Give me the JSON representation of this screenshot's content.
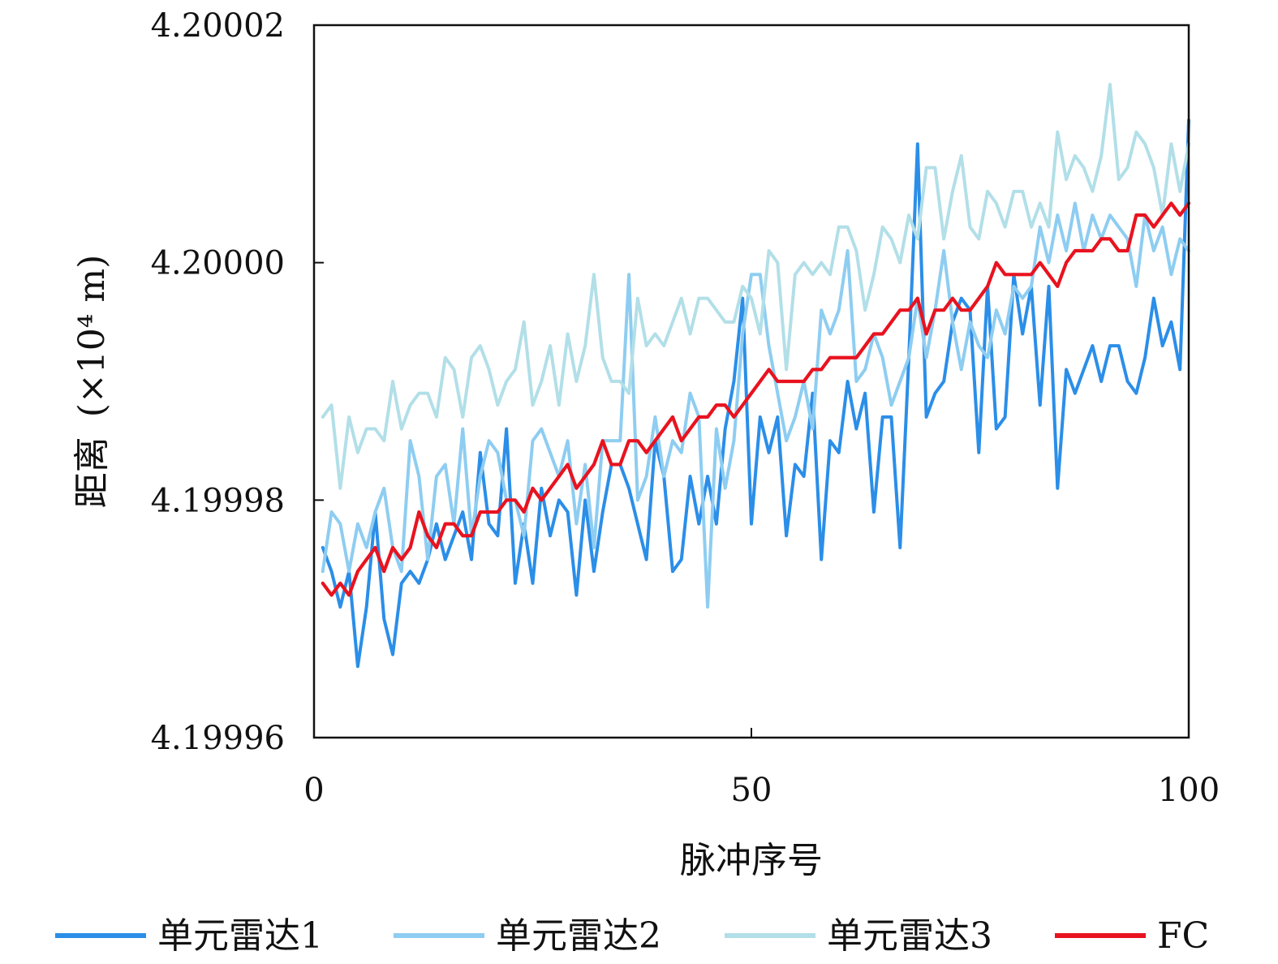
{
  "chart_data": {
    "type": "line",
    "title": "",
    "xlabel": "脉冲序号",
    "ylabel": "距离",
    "ylabel_unit": "(×10⁴ m)",
    "xlim": [
      0,
      100
    ],
    "ylim": [
      4.19996,
      4.20002
    ],
    "x_ticks": [
      0,
      50,
      100
    ],
    "x_tick_labels": [
      "0",
      "50",
      "100"
    ],
    "y_ticks": [
      4.19996,
      4.19998,
      4.2,
      4.20002
    ],
    "y_tick_labels": [
      "4.19996",
      "4.19998",
      "4.20000",
      "4.20002"
    ],
    "grid": false,
    "legend_position": "bottom",
    "series": [
      {
        "name": "单元雷达1",
        "color": "#2b8ee8",
        "values": [
          4.199976,
          4.199974,
          4.199971,
          4.199974,
          4.199966,
          4.199971,
          4.199979,
          4.19997,
          4.199967,
          4.199973,
          4.199974,
          4.199973,
          4.199975,
          4.199978,
          4.199975,
          4.199977,
          4.199979,
          4.199975,
          4.199984,
          4.199978,
          4.199977,
          4.199986,
          4.199973,
          4.199978,
          4.199973,
          4.199981,
          4.199977,
          4.19998,
          4.199979,
          4.199972,
          4.19998,
          4.199974,
          4.199979,
          4.199983,
          4.199983,
          4.199981,
          4.199978,
          4.199975,
          4.199985,
          4.199982,
          4.199974,
          4.199975,
          4.199982,
          4.199978,
          4.199982,
          4.199978,
          4.199986,
          4.19999,
          4.199997,
          4.199978,
          4.199987,
          4.199984,
          4.199987,
          4.199977,
          4.199983,
          4.199982,
          4.199989,
          4.199975,
          4.199985,
          4.199984,
          4.19999,
          4.199986,
          4.199989,
          4.199979,
          4.199987,
          4.199987,
          4.199976,
          4.199992,
          4.20001,
          4.199987,
          4.199989,
          4.19999,
          4.199995,
          4.199997,
          4.199996,
          4.199984,
          4.199998,
          4.199986,
          4.199987,
          4.199999,
          4.199994,
          4.199998,
          4.199988,
          4.199998,
          4.199981,
          4.199991,
          4.199989,
          4.199991,
          4.199993,
          4.19999,
          4.199993,
          4.199993,
          4.19999,
          4.199989,
          4.199992,
          4.199997,
          4.199993,
          4.199995,
          4.199991,
          4.200012
        ]
      },
      {
        "name": "单元雷达2",
        "color": "#8ecdf1",
        "values": [
          4.199974,
          4.199979,
          4.199978,
          4.199974,
          4.199978,
          4.199976,
          4.199979,
          4.199981,
          4.199976,
          4.199974,
          4.199985,
          4.199982,
          4.199975,
          4.199982,
          4.199983,
          4.199978,
          4.199986,
          4.199977,
          4.199982,
          4.199985,
          4.199984,
          4.19998,
          4.19998,
          4.199977,
          4.199985,
          4.199986,
          4.199984,
          4.199982,
          4.199985,
          4.199978,
          4.199983,
          4.199976,
          4.199985,
          4.199985,
          4.199985,
          4.199999,
          4.19998,
          4.199982,
          4.199987,
          4.199982,
          4.199985,
          4.199984,
          4.199989,
          4.199987,
          4.199971,
          4.199986,
          4.199981,
          4.199985,
          4.199994,
          4.199999,
          4.199999,
          4.199993,
          4.199989,
          4.199985,
          4.199987,
          4.19999,
          4.199986,
          4.199996,
          4.199994,
          4.199996,
          4.200001,
          4.19999,
          4.199991,
          4.199994,
          4.199992,
          4.199988,
          4.19999,
          4.199992,
          4.199997,
          4.199992,
          4.199996,
          4.200001,
          4.199995,
          4.199991,
          4.199995,
          4.199993,
          4.199992,
          4.199996,
          4.199994,
          4.199998,
          4.199997,
          4.199998,
          4.200003,
          4.2,
          4.200004,
          4.200001,
          4.200005,
          4.200001,
          4.200004,
          4.200002,
          4.200004,
          4.200003,
          4.200002,
          4.199998,
          4.200004,
          4.200001,
          4.200003,
          4.199999,
          4.200002,
          4.200001
        ]
      },
      {
        "name": "单元雷达3",
        "color": "#b2dfe8",
        "values": [
          4.199987,
          4.199988,
          4.199981,
          4.199987,
          4.199984,
          4.199986,
          4.199986,
          4.199985,
          4.19999,
          4.199986,
          4.199988,
          4.199989,
          4.199989,
          4.199987,
          4.199992,
          4.199991,
          4.199987,
          4.199992,
          4.199993,
          4.199991,
          4.199988,
          4.19999,
          4.199991,
          4.199995,
          4.199988,
          4.19999,
          4.199993,
          4.199988,
          4.199994,
          4.19999,
          4.199993,
          4.199999,
          4.199992,
          4.19999,
          4.19999,
          4.199989,
          4.199997,
          4.199993,
          4.199994,
          4.199993,
          4.199995,
          4.199997,
          4.199994,
          4.199997,
          4.199997,
          4.199996,
          4.199995,
          4.199995,
          4.199998,
          4.199997,
          4.199994,
          4.200001,
          4.2,
          4.199991,
          4.199999,
          4.2,
          4.199999,
          4.2,
          4.199999,
          4.200003,
          4.200003,
          4.200001,
          4.199996,
          4.199999,
          4.200003,
          4.200002,
          4.2,
          4.200004,
          4.200002,
          4.200008,
          4.200008,
          4.200002,
          4.200006,
          4.200009,
          4.200003,
          4.200002,
          4.200006,
          4.200005,
          4.200003,
          4.200006,
          4.200006,
          4.200003,
          4.200005,
          4.200003,
          4.200011,
          4.200007,
          4.200009,
          4.200008,
          4.200006,
          4.200009,
          4.200015,
          4.200007,
          4.200008,
          4.200011,
          4.20001,
          4.200008,
          4.200004,
          4.20001,
          4.200006,
          4.20001
        ]
      },
      {
        "name": "FC",
        "color": "#e8131f",
        "values": [
          4.199973,
          4.199972,
          4.199973,
          4.199972,
          4.199974,
          4.199975,
          4.199976,
          4.199974,
          4.199976,
          4.199975,
          4.199976,
          4.199979,
          4.199977,
          4.199976,
          4.199978,
          4.199978,
          4.199977,
          4.199977,
          4.199979,
          4.199979,
          4.199979,
          4.19998,
          4.19998,
          4.199979,
          4.199981,
          4.19998,
          4.199981,
          4.199982,
          4.199983,
          4.199981,
          4.199982,
          4.199983,
          4.199985,
          4.199983,
          4.199983,
          4.199985,
          4.199985,
          4.199984,
          4.199985,
          4.199986,
          4.199987,
          4.199985,
          4.199986,
          4.199987,
          4.199987,
          4.199988,
          4.199988,
          4.199987,
          4.199988,
          4.199989,
          4.19999,
          4.199991,
          4.19999,
          4.19999,
          4.19999,
          4.19999,
          4.199991,
          4.199991,
          4.199992,
          4.199992,
          4.199992,
          4.199992,
          4.199993,
          4.199994,
          4.199994,
          4.199995,
          4.199996,
          4.199996,
          4.199997,
          4.199994,
          4.199996,
          4.199996,
          4.199997,
          4.199996,
          4.199996,
          4.199997,
          4.199998,
          4.2,
          4.199999,
          4.199999,
          4.199999,
          4.199999,
          4.2,
          4.199999,
          4.199998,
          4.2,
          4.200001,
          4.200001,
          4.200001,
          4.200002,
          4.200002,
          4.200001,
          4.200001,
          4.200004,
          4.200004,
          4.200003,
          4.200004,
          4.200005,
          4.200004,
          4.200005
        ]
      }
    ]
  }
}
